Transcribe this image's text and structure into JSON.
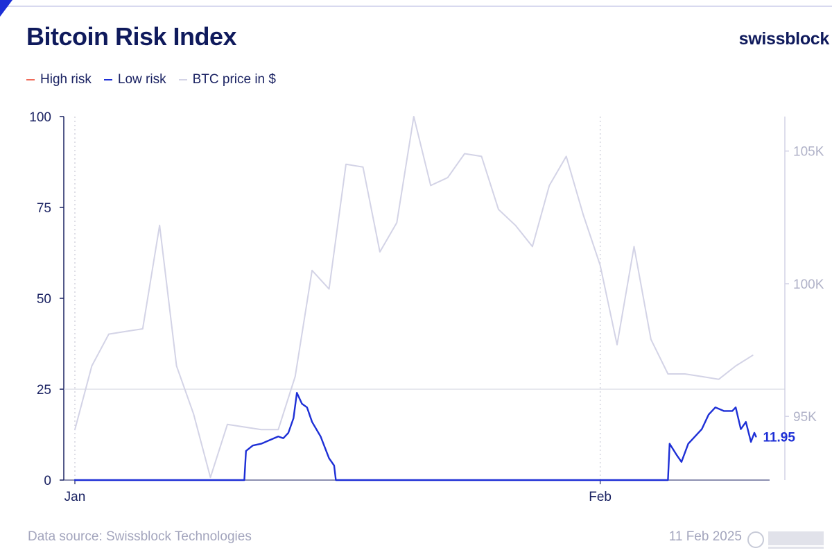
{
  "title": "Bitcoin Risk Index",
  "brand": "swissblock",
  "legend": [
    {
      "label": "High risk",
      "color": "#f06b5a"
    },
    {
      "label": "Low risk",
      "color": "#1d2fd6"
    },
    {
      "label": "BTC price in $",
      "color": "#d3d3e6"
    }
  ],
  "footer": {
    "source": "Data source: Swissblock Technologies",
    "date": "11 Feb 2025"
  },
  "chart_data": {
    "type": "line",
    "title": "Bitcoin Risk Index",
    "x_axis": {
      "range": [
        "2025-01-01",
        "2025-02-11"
      ],
      "ticks": [
        {
          "label": "Jan",
          "date": "2025-01-01"
        },
        {
          "label": "Feb",
          "date": "2025-02-01"
        }
      ]
    },
    "y_left": {
      "range": [
        0,
        100
      ],
      "ticks": [
        0,
        25,
        50,
        75,
        100
      ],
      "tick_labels": [
        "0",
        "25",
        "50",
        "75",
        "100"
      ]
    },
    "y_right": {
      "range": [
        92600,
        106300
      ],
      "ticks": [
        95000,
        100000,
        105000
      ],
      "tick_labels": [
        "95K",
        "100K",
        "105K"
      ]
    },
    "reference_line": {
      "value": 25
    },
    "last_value_label": "11.95",
    "series": [
      {
        "name": "BTC price in $",
        "axis": "right",
        "color": "#d3d3e6",
        "points": [
          [
            "2025-01-01",
            94500
          ],
          [
            "2025-01-02",
            96900
          ],
          [
            "2025-01-03",
            98100
          ],
          [
            "2025-01-04",
            98200
          ],
          [
            "2025-01-05",
            98300
          ],
          [
            "2025-01-06",
            102200
          ],
          [
            "2025-01-07",
            96900
          ],
          [
            "2025-01-08",
            95100
          ],
          [
            "2025-01-09",
            92700
          ],
          [
            "2025-01-10",
            94700
          ],
          [
            "2025-01-11",
            94600
          ],
          [
            "2025-01-12",
            94500
          ],
          [
            "2025-01-13",
            94500
          ],
          [
            "2025-01-14",
            96500
          ],
          [
            "2025-01-15",
            100500
          ],
          [
            "2025-01-16",
            99800
          ],
          [
            "2025-01-17",
            104500
          ],
          [
            "2025-01-18",
            104400
          ],
          [
            "2025-01-19",
            101200
          ],
          [
            "2025-01-20",
            102300
          ],
          [
            "2025-01-21",
            106300
          ],
          [
            "2025-01-22",
            103700
          ],
          [
            "2025-01-23",
            104000
          ],
          [
            "2025-01-24",
            104900
          ],
          [
            "2025-01-25",
            104800
          ],
          [
            "2025-01-26",
            102800
          ],
          [
            "2025-01-27",
            102200
          ],
          [
            "2025-01-28",
            101400
          ],
          [
            "2025-01-29",
            103700
          ],
          [
            "2025-01-30",
            104800
          ],
          [
            "2025-01-31",
            102600
          ],
          [
            "2025-02-01",
            100700
          ],
          [
            "2025-02-02",
            97700
          ],
          [
            "2025-02-03",
            101400
          ],
          [
            "2025-02-04",
            97900
          ],
          [
            "2025-02-05",
            96600
          ],
          [
            "2025-02-06",
            96600
          ],
          [
            "2025-02-07",
            96500
          ],
          [
            "2025-02-08",
            96400
          ],
          [
            "2025-02-09",
            96900
          ],
          [
            "2025-02-10",
            97300
          ]
        ]
      },
      {
        "name": "Low risk",
        "axis": "left",
        "color": "#1d2fd6",
        "points": [
          [
            "2025-01-01",
            0
          ],
          [
            "2025-01-10",
            0
          ],
          [
            "2025-01-11",
            0
          ],
          [
            "2025-01-11.1",
            8
          ],
          [
            "2025-01-11.5",
            9.5
          ],
          [
            "2025-01-12",
            10
          ],
          [
            "2025-01-12.5",
            11
          ],
          [
            "2025-01-13",
            12
          ],
          [
            "2025-01-13.3",
            11.5
          ],
          [
            "2025-01-13.6",
            13
          ],
          [
            "2025-01-13.9",
            17
          ],
          [
            "2025-01-14.1",
            24
          ],
          [
            "2025-01-14.4",
            21
          ],
          [
            "2025-01-14.7",
            20
          ],
          [
            "2025-01-15",
            16
          ],
          [
            "2025-01-15.5",
            12
          ],
          [
            "2025-01-16",
            6
          ],
          [
            "2025-01-16.3",
            4
          ],
          [
            "2025-01-16.4",
            0
          ],
          [
            "2025-02-05",
            0
          ],
          [
            "2025-02-05.1",
            10
          ],
          [
            "2025-02-05.5",
            7
          ],
          [
            "2025-02-05.8",
            5
          ],
          [
            "2025-02-06.2",
            10
          ],
          [
            "2025-02-06.6",
            12
          ],
          [
            "2025-02-07",
            14
          ],
          [
            "2025-02-07.4",
            18
          ],
          [
            "2025-02-07.8",
            20
          ],
          [
            "2025-02-08.3",
            19
          ],
          [
            "2025-02-08.8",
            19
          ],
          [
            "2025-02-09",
            20
          ],
          [
            "2025-02-09.3",
            14
          ],
          [
            "2025-02-09.6",
            16
          ],
          [
            "2025-02-09.9",
            10.5
          ],
          [
            "2025-02-10.1",
            13
          ],
          [
            "2025-02-10.2",
            11.95
          ]
        ]
      },
      {
        "name": "High risk",
        "axis": "left",
        "color": "#f06b5a",
        "points": []
      }
    ]
  }
}
